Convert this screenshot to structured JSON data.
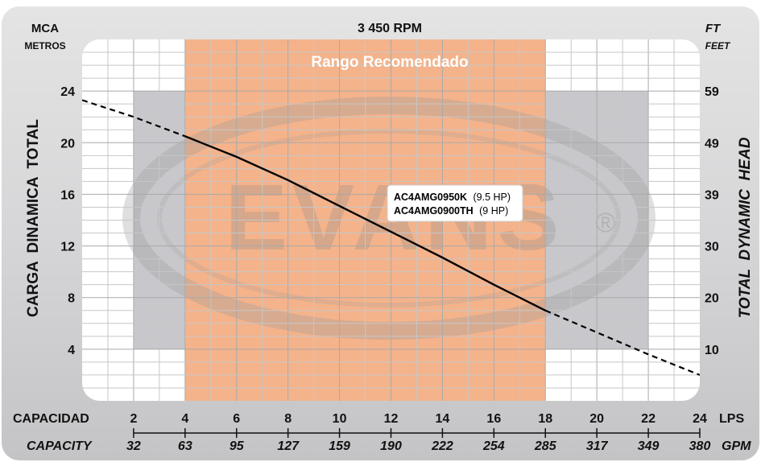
{
  "chart_data": {
    "type": "line",
    "title": "3 450 RPM",
    "left_unit_top": "MCA",
    "left_unit_bottom": "METROS",
    "right_unit_top": "FT",
    "right_unit_bottom": "FEET",
    "ylabel_left": "CARGA  DINAMICA  TOTAL",
    "ylabel_right": "TOTAL  DYNAMIC  HEAD",
    "xlabel_primary": "CAPACIDAD",
    "xlabel_primary_unit": "LPS",
    "xlabel_secondary": "CAPACITY",
    "xlabel_secondary_unit": "GPM",
    "xlim": [
      0,
      24
    ],
    "ylim": [
      0,
      28
    ],
    "x_ticks": [
      "2",
      "4",
      "6",
      "8",
      "10",
      "12",
      "14",
      "16",
      "18",
      "20",
      "22",
      "24"
    ],
    "x_tick_values": [
      2,
      4,
      6,
      8,
      10,
      12,
      14,
      16,
      18,
      20,
      22,
      24
    ],
    "x2_ticks": [
      "32",
      "63",
      "95",
      "127",
      "159",
      "190",
      "222",
      "254",
      "285",
      "317",
      "349",
      "380"
    ],
    "y_ticks": [
      "4",
      "8",
      "12",
      "16",
      "20",
      "24"
    ],
    "y_tick_values": [
      4,
      8,
      12,
      16,
      20,
      24
    ],
    "y2_ticks": [
      "10",
      "20",
      "30",
      "39",
      "49",
      "59"
    ],
    "recommended_range": {
      "label": "Rango Recomendado",
      "x": [
        4,
        18
      ],
      "color": "#f4b38b"
    },
    "gray_bands": [
      {
        "x": [
          2,
          4
        ],
        "y": [
          4,
          24
        ],
        "color": "#c8c8cc"
      },
      {
        "x": [
          18,
          22
        ],
        "y": [
          4,
          24
        ],
        "color": "#c8c8cc"
      }
    ],
    "watermark": "EVANS",
    "watermark_mark": "®",
    "series": [
      {
        "label_lines": [
          {
            "model": "AC4AMG0950K",
            "hp": "(9.5 HP)"
          },
          {
            "model": "AC4AMG0900TH",
            "hp": "(9 HP)"
          }
        ],
        "solid_range": [
          4,
          18
        ],
        "points": [
          {
            "x": 0,
            "y": 23.3
          },
          {
            "x": 2,
            "y": 22.0
          },
          {
            "x": 4,
            "y": 20.5
          },
          {
            "x": 6,
            "y": 18.9
          },
          {
            "x": 8,
            "y": 17.1
          },
          {
            "x": 10,
            "y": 15.1
          },
          {
            "x": 12,
            "y": 13.1
          },
          {
            "x": 14,
            "y": 11.1
          },
          {
            "x": 16,
            "y": 9.0
          },
          {
            "x": 18,
            "y": 7.0
          },
          {
            "x": 20,
            "y": 5.3
          },
          {
            "x": 22,
            "y": 3.6
          },
          {
            "x": 24,
            "y": 2.0
          }
        ],
        "color": "#000000"
      }
    ],
    "grid": true
  }
}
